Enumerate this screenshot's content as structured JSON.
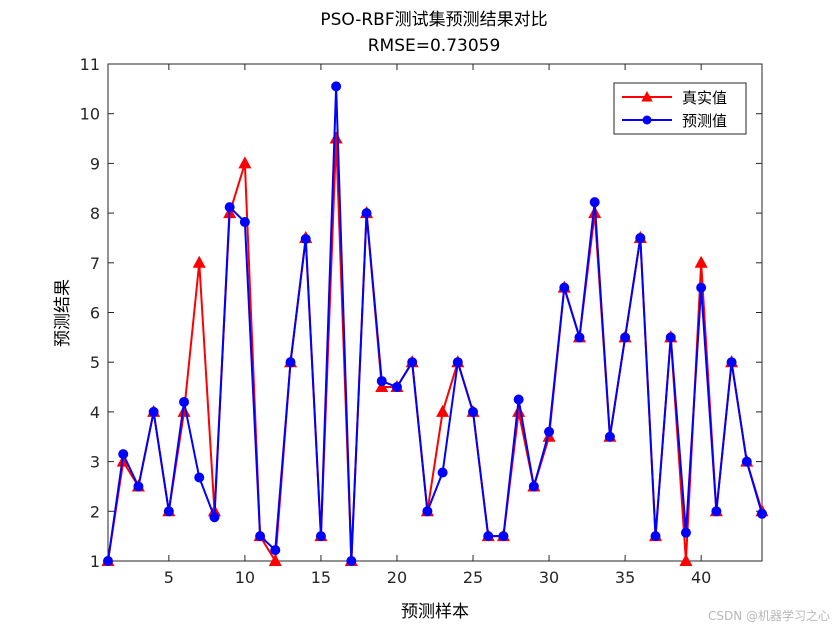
{
  "chart_data": {
    "type": "line",
    "title": "PSO-RBF测试集预测结果对比",
    "subtitle": "RMSE=0.73059",
    "xlabel": "预测样本",
    "ylabel": "预测结果",
    "xlim": [
      1,
      44
    ],
    "ylim": [
      1,
      11
    ],
    "xticks": [
      5,
      10,
      15,
      20,
      25,
      30,
      35,
      40
    ],
    "yticks": [
      1,
      2,
      3,
      4,
      5,
      6,
      7,
      8,
      9,
      10,
      11
    ],
    "grid": false,
    "legend_position": "top-right",
    "x": [
      1,
      2,
      3,
      4,
      5,
      6,
      7,
      8,
      9,
      10,
      11,
      12,
      13,
      14,
      15,
      16,
      17,
      18,
      19,
      20,
      21,
      22,
      23,
      24,
      25,
      26,
      27,
      28,
      29,
      30,
      31,
      32,
      33,
      34,
      35,
      36,
      37,
      38,
      39,
      40,
      41,
      42,
      43,
      44
    ],
    "series": [
      {
        "name": "真实值",
        "color": "#ff0000",
        "marker": "triangle",
        "values": [
          1,
          3,
          2.5,
          4,
          2,
          4,
          7,
          2,
          8,
          9,
          1.5,
          1,
          5,
          7.5,
          1.5,
          9.5,
          1,
          8,
          4.5,
          4.5,
          5,
          2,
          4,
          5,
          4,
          1.5,
          1.5,
          4,
          2.5,
          3.5,
          6.5,
          5.5,
          8,
          3.5,
          5.5,
          7.5,
          1.5,
          5.5,
          1,
          7,
          2,
          5,
          3,
          2
        ]
      },
      {
        "name": "预测值",
        "color": "#0000ff",
        "marker": "circle",
        "values": [
          1,
          3.15,
          2.5,
          4,
          2,
          4.2,
          2.68,
          1.88,
          8.12,
          7.82,
          1.5,
          1.22,
          5,
          7.48,
          1.5,
          10.55,
          1,
          8,
          4.62,
          4.5,
          5,
          2,
          2.78,
          5,
          4,
          1.5,
          1.5,
          4.25,
          2.5,
          3.6,
          6.5,
          5.5,
          8.22,
          3.5,
          5.5,
          7.5,
          1.5,
          5.5,
          1.57,
          6.5,
          2,
          5,
          3,
          1.95
        ]
      }
    ]
  },
  "watermark": "CSDN @机器学习之心"
}
